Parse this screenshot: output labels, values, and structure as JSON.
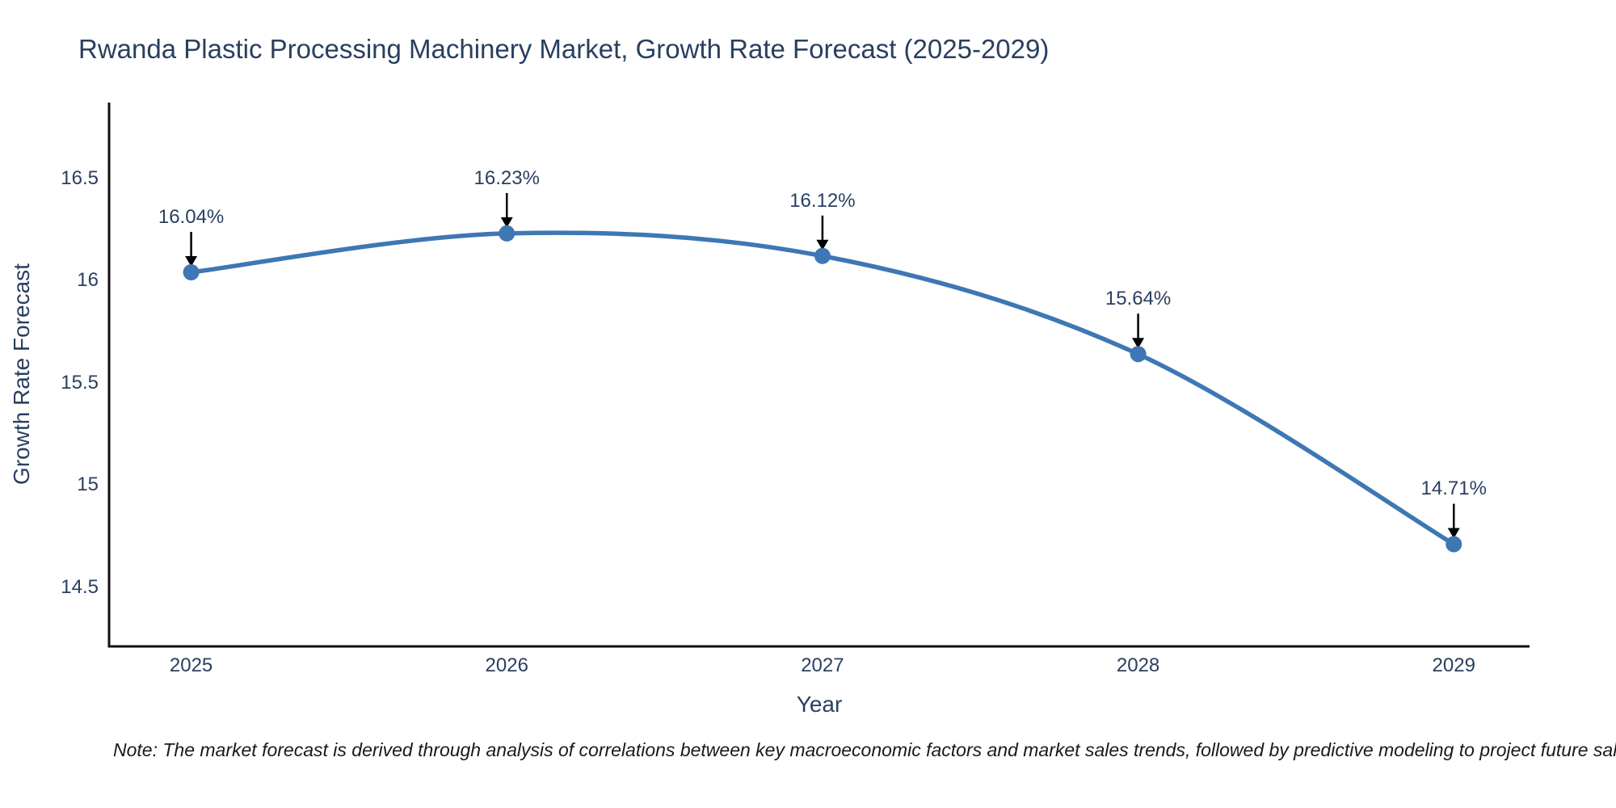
{
  "chart_data": {
    "type": "line",
    "title": "Rwanda Plastic Processing Machinery Market, Growth Rate Forecast (2025-2029)",
    "xlabel": "Year",
    "ylabel": "Growth Rate Forecast",
    "x": [
      2025,
      2026,
      2027,
      2028,
      2029
    ],
    "series": [
      {
        "name": "Growth Rate Forecast",
        "values": [
          16.04,
          16.23,
          16.12,
          15.64,
          14.71
        ],
        "point_labels": [
          "16.04%",
          "16.23%",
          "16.12%",
          "15.64%",
          "14.71%"
        ]
      }
    ],
    "x_tick_labels": [
      "2025",
      "2026",
      "2027",
      "2028",
      "2029"
    ],
    "y_ticks": [
      14.5,
      15,
      15.5,
      16,
      16.5
    ],
    "y_tick_labels": [
      "14.5",
      "15",
      "15.5",
      "16",
      "16.5"
    ],
    "xlim": [
      2024.74,
      2029.24
    ],
    "ylim": [
      14.21,
      16.87
    ],
    "grid": false,
    "legend_position": "none",
    "line_style": "spline",
    "colors": {
      "line": "#3e77b4",
      "marker": "#3e77b4",
      "axis": "#111111",
      "text": "#2a3f5f",
      "annotation_arrow": "#000000",
      "background": "#ffffff"
    }
  },
  "footnote": "Note: The market forecast is derived through analysis of correlations between key macroeconomic factors and market sales trends, followed by predictive modeling to project future sal"
}
